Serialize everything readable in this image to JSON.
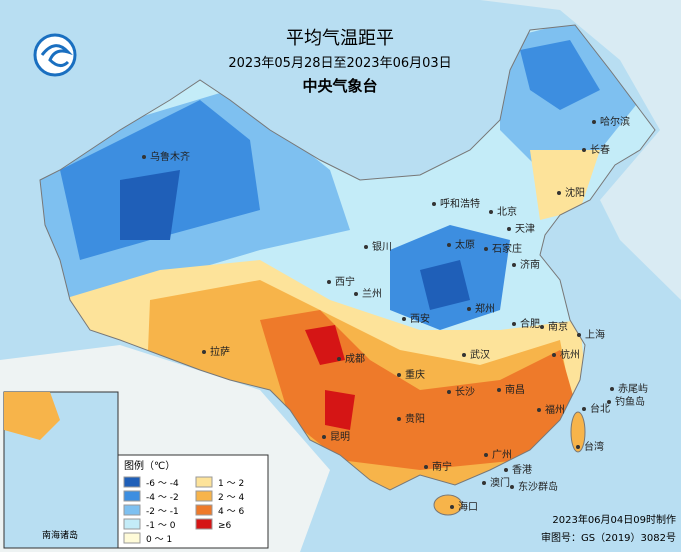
{
  "header": {
    "title": "平均气温距平",
    "date_range": "2023年05月28日至2023年06月03日",
    "agency": "中央气象台"
  },
  "legend": {
    "title": "图例（℃）",
    "items": [
      {
        "label": "-6 ～ -4",
        "color": "#1f5fb8"
      },
      {
        "label": "-4 ～ -2",
        "color": "#3d8ee0"
      },
      {
        "label": "-2 ～ -1",
        "color": "#7ec0f0"
      },
      {
        "label": "-1 ～ 0",
        "color": "#c4ecf8"
      },
      {
        "label": "0 ～ 1",
        "color": "#fffbd8"
      },
      {
        "label": "1 ～ 2",
        "color": "#fde39a"
      },
      {
        "label": "2 ～ 4",
        "color": "#f7b44a"
      },
      {
        "label": "4 ～ 6",
        "color": "#ee7a2a"
      },
      {
        "label": "≥6",
        "color": "#d51515"
      }
    ]
  },
  "cities": [
    "哈尔滨",
    "长春",
    "乌鲁木齐",
    "沈阳",
    "呼和浩特",
    "北京",
    "天津",
    "银川",
    "太原",
    "石家庄",
    "济南",
    "西宁",
    "兰州",
    "郑州",
    "西安",
    "合肥",
    "南京",
    "上海",
    "拉萨",
    "成都",
    "武汉",
    "杭州",
    "重庆",
    "长沙",
    "南昌",
    "福州",
    "台北",
    "贵阳",
    "昆明",
    "南宁",
    "广州",
    "香港",
    "澳门",
    "海口",
    "赤尾屿",
    "钓鱼岛",
    "东沙群岛",
    "台湾"
  ],
  "inset": {
    "title": "南海诸岛"
  },
  "footer": {
    "made": "2023年06月04日09时制作",
    "review": "审图号：GS（2019）3082号"
  }
}
